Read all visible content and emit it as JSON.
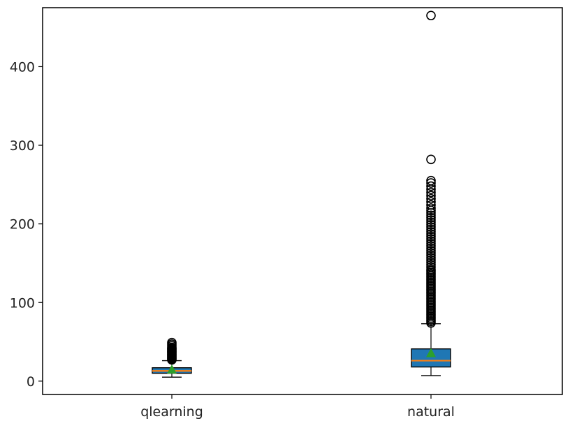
{
  "chart_data": {
    "type": "boxplot",
    "title": "",
    "xlabel": "",
    "ylabel": "",
    "categories": [
      "qlearning",
      "natural"
    ],
    "ylim": [
      -17,
      475
    ],
    "yticks": [
      0,
      100,
      200,
      300,
      400
    ],
    "grid": false,
    "show_means": true,
    "patch_artist": true,
    "colors": {
      "box_fill": "#1f77b4",
      "box_edge": "#000000",
      "median": "#ff7f0e",
      "mean_marker": "#2ca02c",
      "outlier_edge": "#000000"
    },
    "boxes": [
      {
        "name": "qlearning",
        "whisker_low": 5,
        "q1": 10,
        "median": 13,
        "mean": 14,
        "q3": 17,
        "whisker_high": 26,
        "outliers": [
          27,
          28,
          29,
          30,
          31,
          32,
          33,
          34,
          35,
          36,
          37,
          38,
          39,
          40,
          41,
          42,
          43,
          45,
          47,
          49
        ]
      },
      {
        "name": "natural",
        "whisker_low": 7,
        "q1": 18,
        "median": 26,
        "mean": 35,
        "q3": 41,
        "whisker_high": 73,
        "outliers": [
          74,
          76,
          78,
          80,
          82,
          84,
          86,
          88,
          90,
          92,
          94,
          96,
          98,
          100,
          102,
          104,
          106,
          108,
          110,
          112,
          114,
          116,
          118,
          120,
          122,
          124,
          126,
          128,
          130,
          132,
          134,
          136,
          138,
          140,
          142,
          145,
          148,
          151,
          154,
          157,
          160,
          163,
          166,
          169,
          172,
          175,
          178,
          181,
          184,
          187,
          190,
          193,
          196,
          199,
          202,
          205,
          208,
          211,
          214,
          217,
          220,
          224,
          228,
          232,
          236,
          240,
          244,
          248,
          252,
          255,
          282,
          465
        ]
      }
    ]
  }
}
